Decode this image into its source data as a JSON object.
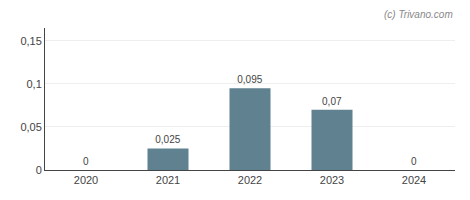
{
  "chart_data": {
    "type": "bar",
    "categories": [
      "2020",
      "2021",
      "2022",
      "2023",
      "2024"
    ],
    "values": [
      0,
      0.025,
      0.095,
      0.07,
      0
    ],
    "value_labels": [
      "0",
      "0,025",
      "0,095",
      "0,07",
      "0"
    ],
    "data_labels": true,
    "color": "#5f8190",
    "ylim": [
      0,
      0.165
    ],
    "yticks": [
      0,
      {
        "value": 0.05,
        "label": "0,05"
      },
      {
        "value": 0.1,
        "label": "0,1"
      },
      {
        "value": 0.15,
        "label": "0,15"
      }
    ],
    "grid": true,
    "annotations": [
      "(c) Trivano.com"
    ]
  }
}
